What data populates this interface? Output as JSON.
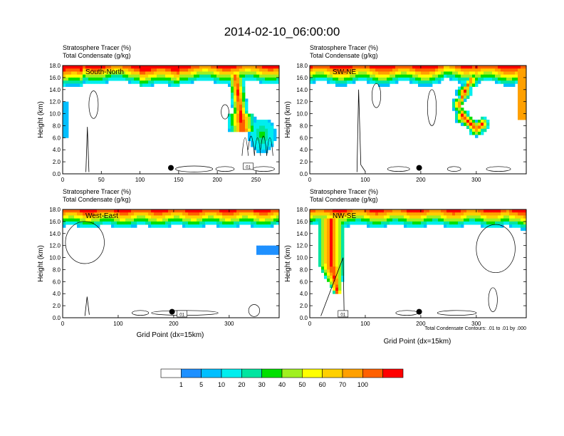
{
  "figure": {
    "title": "2014-02-10_06:00:00",
    "xlabel": "Grid Point (dx=15km)",
    "ylabel": "Height (km)",
    "contour_note": "Total Condensate Contours: .01 to .01 by .000",
    "field1": "Stratosphere Tracer   (%)",
    "field2": "Total Condensate   (g/kg)"
  },
  "chart_data": [
    {
      "type": "heatmap",
      "title": "South-North",
      "xlim": [
        0,
        280
      ],
      "ylim": [
        0,
        18
      ],
      "xticks": [
        0,
        50,
        100,
        150,
        200,
        250
      ],
      "yticks": [
        0,
        2,
        4,
        6,
        8,
        10,
        12,
        14,
        16,
        18
      ],
      "marker": {
        "x": 140,
        "y": 1.0
      },
      "contour_label": "01"
    },
    {
      "type": "heatmap",
      "title": "SW-NE",
      "xlim": [
        0,
        390
      ],
      "ylim": [
        0,
        18
      ],
      "xticks": [
        0,
        100,
        200,
        300
      ],
      "yticks": [
        0,
        2,
        4,
        6,
        8,
        10,
        12,
        14,
        16,
        18
      ],
      "marker": {
        "x": 197,
        "y": 1.0
      },
      "contour_label": ""
    },
    {
      "type": "heatmap",
      "title": "West-East",
      "xlim": [
        0,
        390
      ],
      "ylim": [
        0,
        18
      ],
      "xticks": [
        0,
        100,
        200,
        300
      ],
      "yticks": [
        0,
        2,
        4,
        6,
        8,
        10,
        12,
        14,
        16,
        18
      ],
      "marker": {
        "x": 197,
        "y": 1.0
      },
      "contour_label": "01"
    },
    {
      "type": "heatmap",
      "title": "NW-SE",
      "xlim": [
        0,
        390
      ],
      "ylim": [
        0,
        18
      ],
      "xticks": [
        0,
        100,
        200,
        300
      ],
      "yticks": [
        0,
        2,
        4,
        6,
        8,
        10,
        12,
        14,
        16,
        18
      ],
      "marker": {
        "x": 197,
        "y": 1.0
      },
      "contour_label": "01"
    }
  ],
  "colorbar": {
    "levels": [
      "1",
      "5",
      "10",
      "20",
      "30",
      "40",
      "50",
      "60",
      "70",
      "100"
    ],
    "colors": [
      "#ffffff",
      "#1e90ff",
      "#00bfff",
      "#00eeee",
      "#00e5a0",
      "#00e000",
      "#a0f020",
      "#ffff00",
      "#ffd000",
      "#ffa000",
      "#ff6000",
      "#ff0000"
    ]
  }
}
